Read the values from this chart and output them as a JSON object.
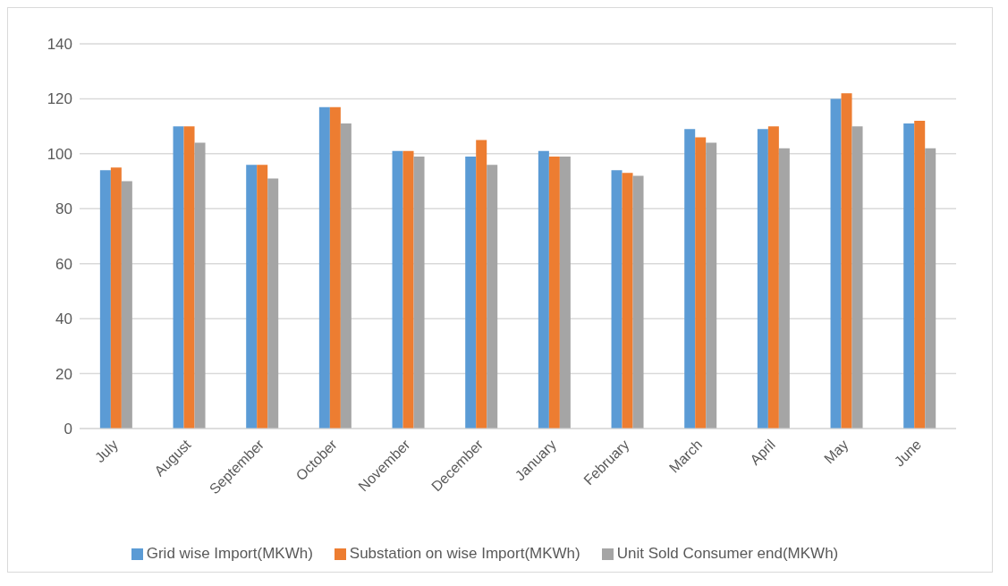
{
  "chart_data": {
    "type": "bar",
    "categories": [
      "July",
      "August",
      "September",
      "October",
      "November",
      "December",
      "January",
      "February",
      "March",
      "April",
      "May",
      "June"
    ],
    "series": [
      {
        "name": "Grid wise Import(MKWh)",
        "color": "#5b9bd5",
        "values": [
          94,
          110,
          96,
          117,
          101,
          99,
          101,
          94,
          109,
          109,
          120,
          111
        ]
      },
      {
        "name": "Substation on wise Import(MKWh)",
        "color": "#ed7d31",
        "values": [
          95,
          110,
          96,
          117,
          101,
          105,
          99,
          93,
          106,
          110,
          122,
          112
        ]
      },
      {
        "name": "Unit Sold Consumer end(MKWh)",
        "color": "#a5a5a5",
        "values": [
          90,
          104,
          91,
          111,
          99,
          96,
          99,
          92,
          104,
          102,
          110,
          102
        ]
      }
    ],
    "ylim": [
      0,
      140
    ],
    "yticks": [
      0,
      20,
      40,
      60,
      80,
      100,
      120,
      140
    ],
    "grid": "y",
    "legend": "bottom"
  }
}
